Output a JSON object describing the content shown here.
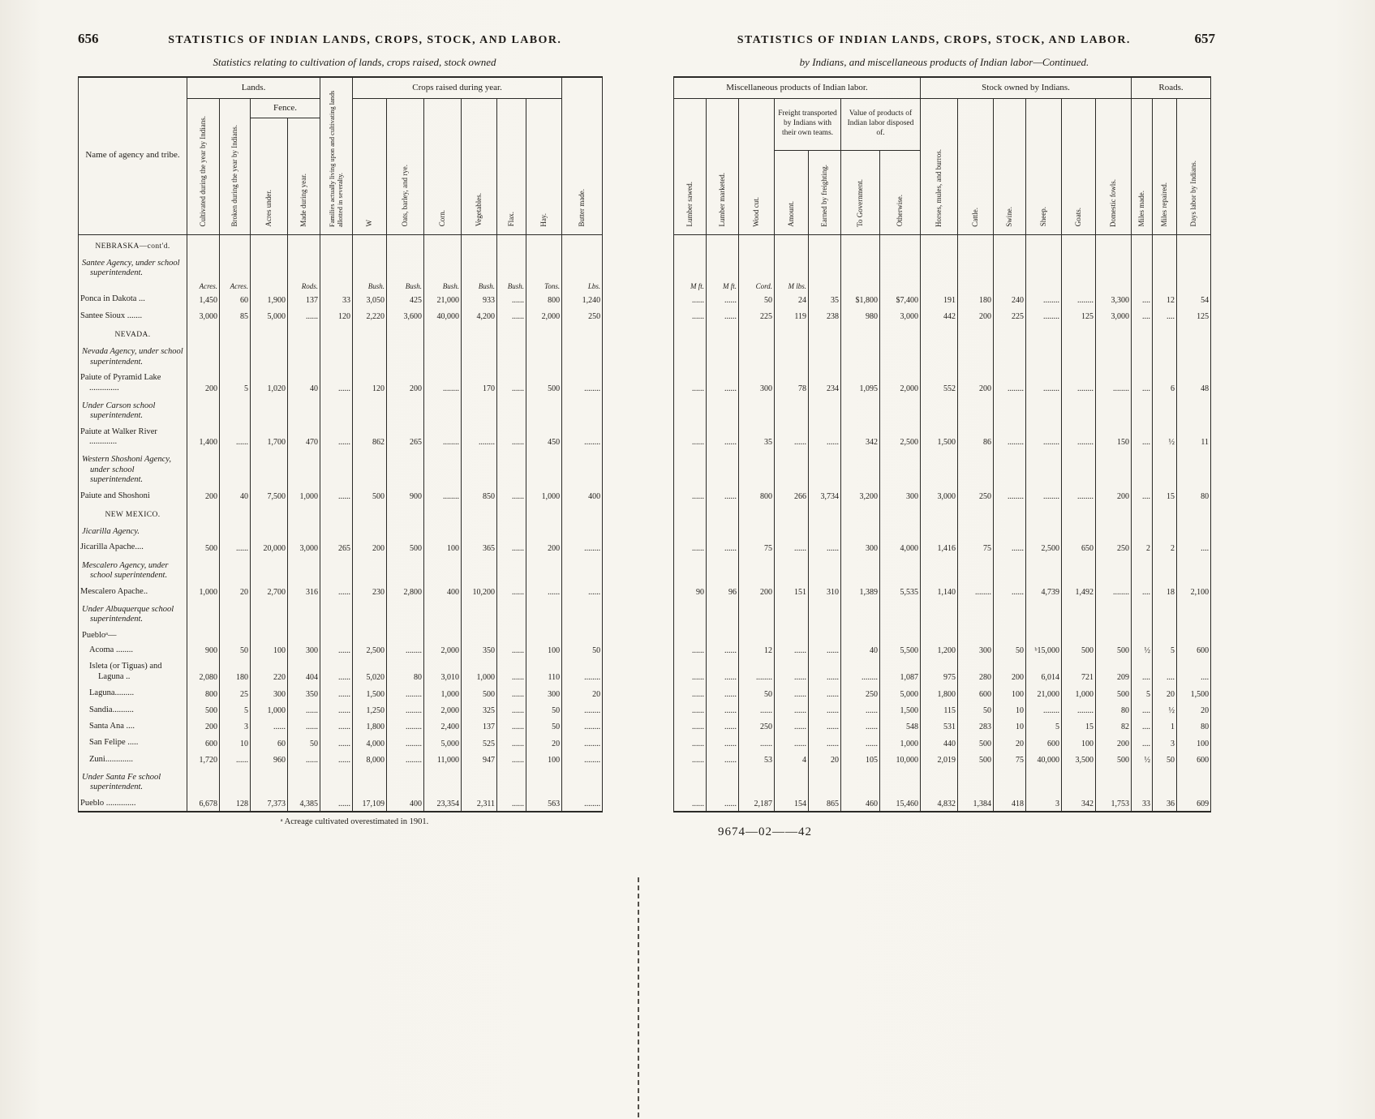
{
  "left_page": {
    "page_number": "656",
    "running_head": "STATISTICS OF INDIAN LANDS, CROPS, STOCK, AND LABOR.",
    "caption": "Statistics relating to cultivation of lands, crops raised, stock owned",
    "footnote": "ᵃ Acreage cultivated overestimated in 1901.",
    "headers": {
      "name": "Name of agency and tribe.",
      "lands": "Lands.",
      "fence": "Fence.",
      "crops": "Crops raised during year.",
      "cols": [
        "Cultivated during the year by Indians.",
        "Broken during the year by Indians.",
        "Acres under.",
        "Made during year.",
        "Families actually living upon and cultivating lands allotted in severalty.",
        "W",
        "Oats, barley, and rye.",
        "Corn.",
        "Vegetables.",
        "Flax.",
        "Hay.",
        "Butter made."
      ]
    }
  },
  "right_page": {
    "page_number": "657",
    "running_head": "STATISTICS OF INDIAN LANDS, CROPS, STOCK, AND LABOR.",
    "caption": "by Indians, and miscellaneous products of Indian labor—Continued.",
    "footer": "9674—02——42",
    "headers": {
      "misc": "Miscellaneous products of Indian labor.",
      "freight": "Freight transported by Indians with their own teams.",
      "value": "Value of products of Indian labor disposed of.",
      "stock": "Stock owned by Indians.",
      "roads": "Roads.",
      "cols": [
        "Lumber sawed.",
        "Lumber marketed.",
        "Wood cut.",
        "Amount.",
        "Earned by freighting.",
        "To Government.",
        "Otherwise.",
        "Horses, mules, and burros.",
        "Cattle.",
        "Swine.",
        "Sheep.",
        "Goats.",
        "Domestic fowls.",
        "Miles made.",
        "Miles repaired.",
        "Days labor by Indians."
      ]
    }
  },
  "rows": [
    {
      "type": "state",
      "label": "NEBRASKA—cont'd."
    },
    {
      "type": "agency",
      "label": "Santee Agency, under school superintendent."
    },
    {
      "type": "units",
      "label": "",
      "left": [
        "Acres.",
        "Acres.",
        "",
        "Rods.",
        "",
        "Bush.",
        "Bush.",
        "Bush.",
        "Bush.",
        "Bush.",
        "Tons.",
        "Lbs."
      ],
      "right": [
        "M ft.",
        "M ft.",
        "Cord.",
        "M lbs.",
        "",
        "",
        "",
        "",
        "",
        "",
        "",
        "",
        "",
        "",
        "",
        ""
      ]
    },
    {
      "type": "data",
      "label": "Ponca in Dakota ...",
      "left": [
        "1,450",
        "60",
        "1,900",
        "137",
        "33",
        "3,050",
        "425",
        "21,000",
        "933",
        "......",
        "800",
        "1,240"
      ],
      "right": [
        "......",
        "......",
        "50",
        "24",
        "35",
        "$1,800",
        "$7,400",
        "191",
        "180",
        "240",
        "........",
        "........",
        "3,300",
        "....",
        "12",
        "54"
      ]
    },
    {
      "type": "data",
      "label": "Santee Sioux .......",
      "left": [
        "3,000",
        "85",
        "5,000",
        "......",
        "120",
        "2,220",
        "3,600",
        "40,000",
        "4,200",
        "......",
        "2,000",
        "250"
      ],
      "right": [
        "......",
        "......",
        "225",
        "119",
        "238",
        "980",
        "3,000",
        "442",
        "200",
        "225",
        "........",
        "125",
        "3,000",
        "....",
        "....",
        "125"
      ]
    },
    {
      "type": "state",
      "label": "NEVADA."
    },
    {
      "type": "agency",
      "label": "Nevada Agency, under school superintendent."
    },
    {
      "type": "data",
      "label": "Paiute of Pyramid Lake ..............",
      "left": [
        "200",
        "5",
        "1,020",
        "40",
        "......",
        "120",
        "200",
        "........",
        "170",
        "......",
        "500",
        "........"
      ],
      "right": [
        "......",
        "......",
        "300",
        "78",
        "234",
        "1,095",
        "2,000",
        "552",
        "200",
        "........",
        "........",
        "........",
        "........",
        "....",
        "6",
        "48"
      ]
    },
    {
      "type": "agency",
      "label": "Under Carson school superintendent."
    },
    {
      "type": "data",
      "label": "Paiute at Walker River .............",
      "left": [
        "1,400",
        "......",
        "1,700",
        "470",
        "......",
        "862",
        "265",
        "........",
        "........",
        "......",
        "450",
        "........"
      ],
      "right": [
        "......",
        "......",
        "35",
        "......",
        "......",
        "342",
        "2,500",
        "1,500",
        "86",
        "........",
        "........",
        "........",
        "150",
        "....",
        "½",
        "11"
      ]
    },
    {
      "type": "agency",
      "label": "Western Shoshoni Agency, under school superintendent."
    },
    {
      "type": "data",
      "label": "Paiute and Shoshoni",
      "left": [
        "200",
        "40",
        "7,500",
        "1,000",
        "......",
        "500",
        "900",
        "........",
        "850",
        "......",
        "1,000",
        "400"
      ],
      "right": [
        "......",
        "......",
        "800",
        "266",
        "3,734",
        "3,200",
        "300",
        "3,000",
        "250",
        "........",
        "........",
        "........",
        "200",
        "....",
        "15",
        "80"
      ]
    },
    {
      "type": "state",
      "label": "NEW MEXICO."
    },
    {
      "type": "agency",
      "label": "Jicarilla Agency."
    },
    {
      "type": "data",
      "label": "Jicarilla Apache....",
      "left": [
        "500",
        "......",
        "20,000",
        "3,000",
        "265",
        "200",
        "500",
        "100",
        "365",
        "......",
        "200",
        "........"
      ],
      "right": [
        "......",
        "......",
        "75",
        "......",
        "......",
        "300",
        "4,000",
        "1,416",
        "75",
        "......",
        "2,500",
        "650",
        "250",
        "2",
        "2",
        "...."
      ]
    },
    {
      "type": "agency",
      "label": "Mescalero Agency, under school superintendent."
    },
    {
      "type": "data",
      "label": "Mescalero Apache..",
      "left": [
        "1,000",
        "20",
        "2,700",
        "316",
        "......",
        "230",
        "2,800",
        "400",
        "10,200",
        "......",
        "......",
        "......"
      ],
      "right": [
        "90",
        "96",
        "200",
        "151",
        "310",
        "1,389",
        "5,535",
        "1,140",
        "........",
        "......",
        "4,739",
        "1,492",
        "........",
        "....",
        "18",
        "2,100"
      ]
    },
    {
      "type": "agency",
      "label": "Under Albuquerque school superintendent."
    },
    {
      "type": "grouplabel",
      "label": "Puebloᵃ—"
    },
    {
      "type": "data",
      "indent": true,
      "label": "Acoma ........",
      "left": [
        "900",
        "50",
        "100",
        "300",
        "......",
        "2,500",
        "........",
        "2,000",
        "350",
        "......",
        "100",
        "50"
      ],
      "right": [
        "......",
        "......",
        "12",
        "......",
        "......",
        "40",
        "5,500",
        "1,200",
        "300",
        "50",
        "ᵇ15,000",
        "500",
        "500",
        "½",
        "5",
        "600"
      ]
    },
    {
      "type": "data",
      "indent": true,
      "label": "Isleta (or Tiguas) and Laguna ..",
      "left": [
        "2,080",
        "180",
        "220",
        "404",
        "......",
        "5,020",
        "80",
        "3,010",
        "1,000",
        "......",
        "110",
        "........"
      ],
      "right": [
        "......",
        "......",
        "........",
        "......",
        "......",
        "........",
        "1,087",
        "975",
        "280",
        "200",
        "6,014",
        "721",
        "209",
        "....",
        "....",
        "...."
      ]
    },
    {
      "type": "data",
      "indent": true,
      "label": "Laguna.........",
      "left": [
        "800",
        "25",
        "300",
        "350",
        "......",
        "1,500",
        "........",
        "1,000",
        "500",
        "......",
        "300",
        "20"
      ],
      "right": [
        "......",
        "......",
        "50",
        "......",
        "......",
        "250",
        "5,000",
        "1,800",
        "600",
        "100",
        "21,000",
        "1,000",
        "500",
        "5",
        "20",
        "1,500"
      ]
    },
    {
      "type": "data",
      "indent": true,
      "label": "Sandia..........",
      "left": [
        "500",
        "5",
        "1,000",
        "......",
        "......",
        "1,250",
        "........",
        "2,000",
        "325",
        "......",
        "50",
        "........"
      ],
      "right": [
        "......",
        "......",
        "......",
        "......",
        "......",
        "......",
        "1,500",
        "115",
        "50",
        "10",
        "........",
        "........",
        "80",
        "....",
        "½",
        "20"
      ]
    },
    {
      "type": "data",
      "indent": true,
      "label": "Santa Ana ....",
      "left": [
        "200",
        "3",
        "......",
        "......",
        "......",
        "1,800",
        "........",
        "2,400",
        "137",
        "......",
        "50",
        "........"
      ],
      "right": [
        "......",
        "......",
        "250",
        "......",
        "......",
        "......",
        "548",
        "531",
        "283",
        "10",
        "5",
        "15",
        "82",
        "....",
        "1",
        "80"
      ]
    },
    {
      "type": "data",
      "indent": true,
      "label": "San Felipe .....",
      "left": [
        "600",
        "10",
        "60",
        "50",
        "......",
        "4,000",
        "........",
        "5,000",
        "525",
        "......",
        "20",
        "........"
      ],
      "right": [
        "......",
        "......",
        "......",
        "......",
        "......",
        "......",
        "1,000",
        "440",
        "500",
        "20",
        "600",
        "100",
        "200",
        "....",
        "3",
        "100"
      ]
    },
    {
      "type": "data",
      "indent": true,
      "label": "Zuni.............",
      "left": [
        "1,720",
        "......",
        "960",
        "......",
        "......",
        "8,000",
        "........",
        "11,000",
        "947",
        "......",
        "100",
        "........"
      ],
      "right": [
        "......",
        "......",
        "53",
        "4",
        "20",
        "105",
        "10,000",
        "2,019",
        "500",
        "75",
        "40,000",
        "3,500",
        "500",
        "½",
        "50",
        "600"
      ]
    },
    {
      "type": "agency",
      "label": "Under Santa Fe school superintendent."
    },
    {
      "type": "data",
      "label": "Pueblo ..............",
      "left": [
        "6,678",
        "128",
        "7,373",
        "4,385",
        "......",
        "17,109",
        "400",
        "23,354",
        "2,311",
        "......",
        "563",
        "........"
      ],
      "right": [
        "......",
        "......",
        "2,187",
        "154",
        "865",
        "460",
        "15,460",
        "4,832",
        "1,384",
        "418",
        "3",
        "342",
        "1,753",
        "33",
        "36",
        "609"
      ]
    }
  ]
}
